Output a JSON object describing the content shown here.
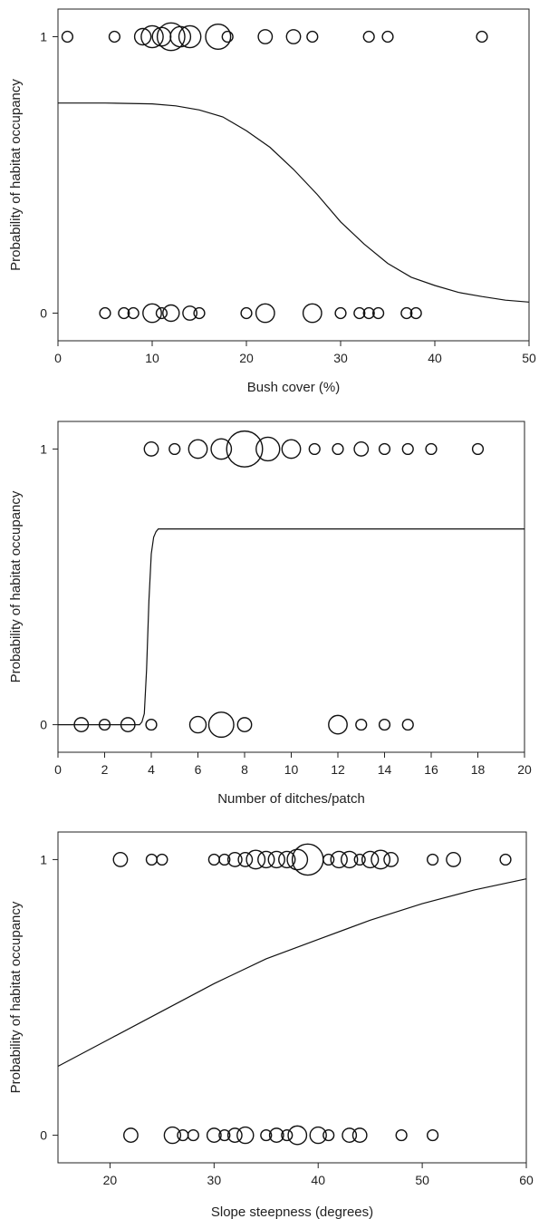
{
  "chart_data": [
    {
      "type": "scatter",
      "xlabel": "Bush cover (%)",
      "ylabel": "Probability of habitat occupancy",
      "xlim": [
        0,
        50
      ],
      "ylim": [
        -0.1,
        1.1
      ],
      "xticks": [
        0,
        10,
        20,
        30,
        40,
        50
      ],
      "yticks": [
        0,
        1
      ],
      "points": [
        {
          "x": 1,
          "y": 1,
          "n": 1
        },
        {
          "x": 6,
          "y": 1,
          "n": 1
        },
        {
          "x": 9,
          "y": 1,
          "n": 3
        },
        {
          "x": 10,
          "y": 1,
          "n": 6
        },
        {
          "x": 11,
          "y": 1,
          "n": 4
        },
        {
          "x": 12,
          "y": 1,
          "n": 10
        },
        {
          "x": 13,
          "y": 1,
          "n": 5
        },
        {
          "x": 14,
          "y": 1,
          "n": 6
        },
        {
          "x": 17,
          "y": 1,
          "n": 8
        },
        {
          "x": 18,
          "y": 1,
          "n": 1
        },
        {
          "x": 22,
          "y": 1,
          "n": 2
        },
        {
          "x": 25,
          "y": 1,
          "n": 2
        },
        {
          "x": 27,
          "y": 1,
          "n": 1
        },
        {
          "x": 33,
          "y": 1,
          "n": 1
        },
        {
          "x": 35,
          "y": 1,
          "n": 1
        },
        {
          "x": 45,
          "y": 1,
          "n": 1
        },
        {
          "x": 5,
          "y": 0,
          "n": 1
        },
        {
          "x": 7,
          "y": 0,
          "n": 1
        },
        {
          "x": 8,
          "y": 0,
          "n": 1
        },
        {
          "x": 10,
          "y": 0,
          "n": 4
        },
        {
          "x": 11,
          "y": 0,
          "n": 1
        },
        {
          "x": 12,
          "y": 0,
          "n": 3
        },
        {
          "x": 14,
          "y": 0,
          "n": 2
        },
        {
          "x": 15,
          "y": 0,
          "n": 1
        },
        {
          "x": 20,
          "y": 0,
          "n": 1
        },
        {
          "x": 22,
          "y": 0,
          "n": 4
        },
        {
          "x": 27,
          "y": 0,
          "n": 4
        },
        {
          "x": 30,
          "y": 0,
          "n": 1
        },
        {
          "x": 32,
          "y": 0,
          "n": 1
        },
        {
          "x": 33,
          "y": 0,
          "n": 1
        },
        {
          "x": 34,
          "y": 0,
          "n": 1
        },
        {
          "x": 37,
          "y": 0,
          "n": 1
        },
        {
          "x": 38,
          "y": 0,
          "n": 1
        }
      ],
      "curve": {
        "x": [
          0,
          5,
          10,
          12.5,
          15,
          17.5,
          20,
          22.5,
          25,
          27.5,
          30,
          32.5,
          35,
          37.5,
          40,
          42.5,
          45,
          47.5,
          50
        ],
        "y": [
          0.76,
          0.76,
          0.757,
          0.75,
          0.735,
          0.71,
          0.66,
          0.6,
          0.52,
          0.43,
          0.33,
          0.25,
          0.18,
          0.13,
          0.1,
          0.075,
          0.06,
          0.047,
          0.04
        ]
      }
    },
    {
      "type": "scatter",
      "xlabel": "Number of ditches/patch",
      "ylabel": "Probability of habitat occupancy",
      "xlim": [
        0,
        20
      ],
      "ylim": [
        -0.1,
        1.1
      ],
      "xticks": [
        0,
        2,
        4,
        6,
        8,
        10,
        12,
        14,
        16,
        18,
        20
      ],
      "yticks": [
        0,
        1
      ],
      "points": [
        {
          "x": 4,
          "y": 1,
          "n": 2
        },
        {
          "x": 5,
          "y": 1,
          "n": 1
        },
        {
          "x": 6,
          "y": 1,
          "n": 4
        },
        {
          "x": 7,
          "y": 1,
          "n": 5
        },
        {
          "x": 8,
          "y": 1,
          "n": 18
        },
        {
          "x": 9,
          "y": 1,
          "n": 7
        },
        {
          "x": 10,
          "y": 1,
          "n": 4
        },
        {
          "x": 11,
          "y": 1,
          "n": 1
        },
        {
          "x": 12,
          "y": 1,
          "n": 1
        },
        {
          "x": 13,
          "y": 1,
          "n": 2
        },
        {
          "x": 14,
          "y": 1,
          "n": 1
        },
        {
          "x": 15,
          "y": 1,
          "n": 1
        },
        {
          "x": 16,
          "y": 1,
          "n": 1
        },
        {
          "x": 18,
          "y": 1,
          "n": 1
        },
        {
          "x": 1,
          "y": 0,
          "n": 2
        },
        {
          "x": 2,
          "y": 0,
          "n": 1
        },
        {
          "x": 3,
          "y": 0,
          "n": 2
        },
        {
          "x": 4,
          "y": 0,
          "n": 1
        },
        {
          "x": 6,
          "y": 0,
          "n": 3
        },
        {
          "x": 7,
          "y": 0,
          "n": 8
        },
        {
          "x": 8,
          "y": 0,
          "n": 2
        },
        {
          "x": 12,
          "y": 0,
          "n": 4
        },
        {
          "x": 13,
          "y": 0,
          "n": 1
        },
        {
          "x": 14,
          "y": 0,
          "n": 1
        },
        {
          "x": 15,
          "y": 0,
          "n": 1
        }
      ],
      "curve": {
        "x": [
          0,
          3.5,
          3.6,
          3.7,
          3.8,
          3.9,
          4.0,
          4.1,
          4.2,
          4.3,
          4.5,
          5,
          10,
          15,
          20
        ],
        "y": [
          0,
          0,
          0.01,
          0.04,
          0.2,
          0.45,
          0.62,
          0.68,
          0.7,
          0.71,
          0.71,
          0.71,
          0.71,
          0.71,
          0.71
        ]
      }
    },
    {
      "type": "scatter",
      "xlabel": "Slope steepness (degrees)",
      "ylabel": "Probability of habitat occupancy",
      "xlim": [
        15,
        60
      ],
      "ylim": [
        -0.1,
        1.1
      ],
      "xticks": [
        20,
        30,
        40,
        50,
        60
      ],
      "yticks": [
        0,
        1
      ],
      "points": [
        {
          "x": 21,
          "y": 1,
          "n": 2
        },
        {
          "x": 24,
          "y": 1,
          "n": 1
        },
        {
          "x": 25,
          "y": 1,
          "n": 1
        },
        {
          "x": 30,
          "y": 1,
          "n": 1
        },
        {
          "x": 31,
          "y": 1,
          "n": 1
        },
        {
          "x": 32,
          "y": 1,
          "n": 2
        },
        {
          "x": 33,
          "y": 1,
          "n": 2
        },
        {
          "x": 34,
          "y": 1,
          "n": 4
        },
        {
          "x": 35,
          "y": 1,
          "n": 3
        },
        {
          "x": 36,
          "y": 1,
          "n": 3
        },
        {
          "x": 37,
          "y": 1,
          "n": 3
        },
        {
          "x": 38,
          "y": 1,
          "n": 5
        },
        {
          "x": 39,
          "y": 1,
          "n": 13
        },
        {
          "x": 41,
          "y": 1,
          "n": 1
        },
        {
          "x": 42,
          "y": 1,
          "n": 3
        },
        {
          "x": 43,
          "y": 1,
          "n": 3
        },
        {
          "x": 44,
          "y": 1,
          "n": 1
        },
        {
          "x": 45,
          "y": 1,
          "n": 3
        },
        {
          "x": 46,
          "y": 1,
          "n": 4
        },
        {
          "x": 47,
          "y": 1,
          "n": 2
        },
        {
          "x": 51,
          "y": 1,
          "n": 1
        },
        {
          "x": 53,
          "y": 1,
          "n": 2
        },
        {
          "x": 58,
          "y": 1,
          "n": 1
        },
        {
          "x": 22,
          "y": 0,
          "n": 2
        },
        {
          "x": 26,
          "y": 0,
          "n": 3
        },
        {
          "x": 27,
          "y": 0,
          "n": 1
        },
        {
          "x": 28,
          "y": 0,
          "n": 1
        },
        {
          "x": 30,
          "y": 0,
          "n": 2
        },
        {
          "x": 31,
          "y": 0,
          "n": 1
        },
        {
          "x": 32,
          "y": 0,
          "n": 2
        },
        {
          "x": 33,
          "y": 0,
          "n": 3
        },
        {
          "x": 35,
          "y": 0,
          "n": 1
        },
        {
          "x": 36,
          "y": 0,
          "n": 2
        },
        {
          "x": 37,
          "y": 0,
          "n": 1
        },
        {
          "x": 38,
          "y": 0,
          "n": 4
        },
        {
          "x": 40,
          "y": 0,
          "n": 3
        },
        {
          "x": 41,
          "y": 0,
          "n": 1
        },
        {
          "x": 43,
          "y": 0,
          "n": 2
        },
        {
          "x": 44,
          "y": 0,
          "n": 2
        },
        {
          "x": 48,
          "y": 0,
          "n": 1
        },
        {
          "x": 51,
          "y": 0,
          "n": 1
        }
      ],
      "curve": {
        "x": [
          15,
          20,
          25,
          30,
          35,
          40,
          45,
          50,
          55,
          60
        ],
        "y": [
          0.25,
          0.35,
          0.45,
          0.55,
          0.64,
          0.71,
          0.78,
          0.84,
          0.89,
          0.93
        ]
      }
    }
  ]
}
